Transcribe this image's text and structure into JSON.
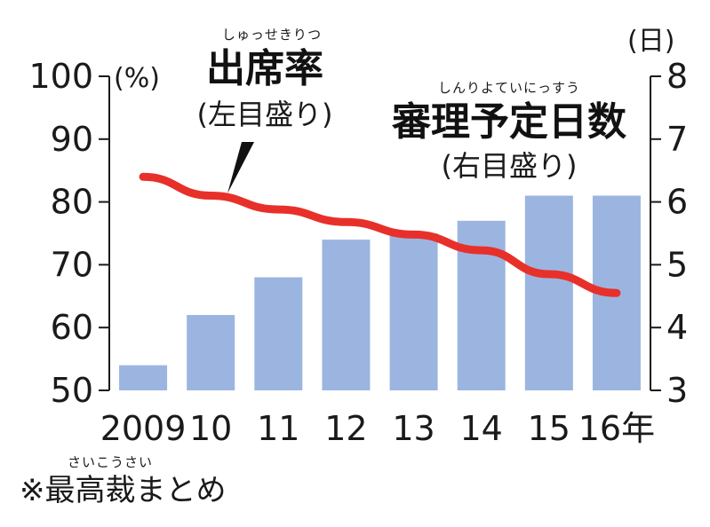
{
  "chart_data": {
    "type": "bar",
    "categories": [
      "2009",
      "10",
      "11",
      "12",
      "13",
      "14",
      "15",
      "16年"
    ],
    "series": [
      {
        "kind": "bar",
        "axis": "right",
        "color": "#9bb5e0",
        "values": [
          3.4,
          4.2,
          4.8,
          5.4,
          5.5,
          5.7,
          6.1,
          6.1
        ]
      },
      {
        "kind": "line",
        "axis": "left",
        "color": "#e8302a",
        "values": [
          84.0,
          81.0,
          78.8,
          76.8,
          74.8,
          72.3,
          68.5,
          65.5
        ]
      }
    ],
    "left_axis": {
      "unit": "(%)",
      "ylim": [
        50,
        100
      ],
      "ticks": [
        "50",
        "60",
        "70",
        "80",
        "90",
        "100"
      ]
    },
    "right_axis": {
      "unit": "(日)",
      "ylim": [
        3,
        8
      ],
      "ticks": [
        "3",
        "4",
        "5",
        "6",
        "7",
        "8"
      ]
    },
    "grid": false,
    "annotations": {
      "line_label": {
        "ruby": "しゅっせきりつ",
        "title": "出席率",
        "sub": "(左目盛り)"
      },
      "bar_label": {
        "ruby": "しんりよていにっすう",
        "title": "審理予定日数",
        "sub": "(右目盛り)"
      }
    },
    "source": {
      "ruby": "さいこうさい",
      "text": "※最高裁まとめ"
    }
  }
}
